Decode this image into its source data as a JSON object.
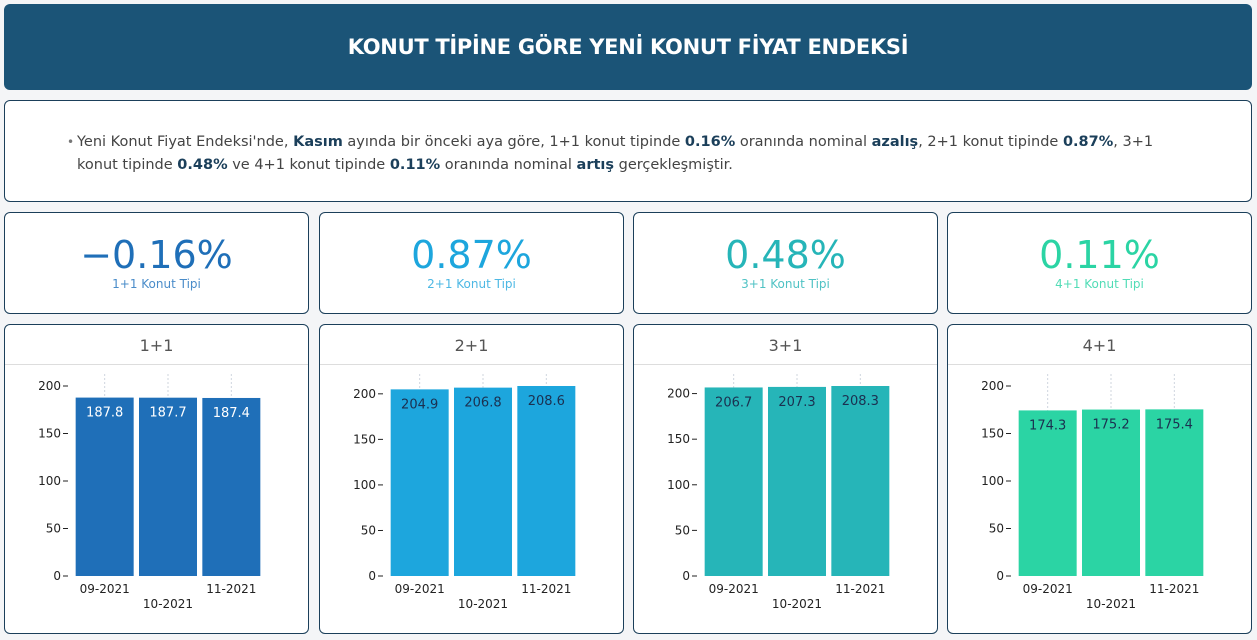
{
  "header": {
    "title": "KONUT TİPİNE GÖRE YENİ KONUT FİYAT ENDEKSİ"
  },
  "summary": {
    "bullet": "•",
    "parts": [
      {
        "text": "Yeni Konut Fiyat Endeksi'nde, ",
        "bold": false
      },
      {
        "text": "Kasım",
        "bold": true
      },
      {
        "text": " ayında bir önceki aya göre, 1+1 konut tipinde ",
        "bold": false
      },
      {
        "text": "0.16%",
        "bold": true
      },
      {
        "text": " oranında nominal ",
        "bold": false
      },
      {
        "text": "azalış",
        "bold": true
      },
      {
        "text": ", 2+1 konut tipinde ",
        "bold": false
      },
      {
        "text": "0.87%",
        "bold": true
      },
      {
        "text": ", 3+1 konut tipinde ",
        "bold": false
      },
      {
        "text": "0.48%",
        "bold": true
      },
      {
        "text": " ve 4+1 konut tipinde ",
        "bold": false
      },
      {
        "text": "0.11%",
        "bold": true
      },
      {
        "text": " oranında nominal ",
        "bold": false
      },
      {
        "text": "artış",
        "bold": true
      },
      {
        "text": " gerçekleşmiştir.",
        "bold": false
      }
    ]
  },
  "kpis": [
    {
      "value": "−0.16%",
      "label": "1+1 Konut Tipi",
      "color": "#1f6fb8",
      "label_color": "#4a8cc9"
    },
    {
      "value": "0.87%",
      "label": "2+1 Konut Tipi",
      "color": "#1da6dd",
      "label_color": "#4db8e4"
    },
    {
      "value": "0.48%",
      "label": "3+1 Konut Tipi",
      "color": "#26b5b8",
      "label_color": "#4fc2c4"
    },
    {
      "value": "0.11%",
      "label": "4+1 Konut Tipi",
      "color": "#2bd4a4",
      "label_color": "#52dcb6"
    }
  ],
  "chart_data": [
    {
      "type": "bar",
      "title": "1+1",
      "categories": [
        "09-2021",
        "10-2021",
        "11-2021"
      ],
      "values": [
        187.8,
        187.7,
        187.4
      ],
      "yticks": [
        0,
        50,
        100,
        150,
        200
      ],
      "ylim": [
        0,
        200
      ],
      "color": "#1f6fb8",
      "label_color": "#ffffff",
      "grid": "vertical-dotted"
    },
    {
      "type": "bar",
      "title": "2+1",
      "categories": [
        "09-2021",
        "10-2021",
        "11-2021"
      ],
      "values": [
        204.9,
        206.8,
        208.6
      ],
      "yticks": [
        0,
        50,
        100,
        150,
        200
      ],
      "ylim": [
        0,
        208.6
      ],
      "color": "#1da6dd",
      "label_color": "#1b3050",
      "grid": "vertical-dotted"
    },
    {
      "type": "bar",
      "title": "3+1",
      "categories": [
        "09-2021",
        "10-2021",
        "11-2021"
      ],
      "values": [
        206.7,
        207.3,
        208.3
      ],
      "yticks": [
        0,
        50,
        100,
        150,
        200
      ],
      "ylim": [
        0,
        208.3
      ],
      "color": "#26b5b8",
      "label_color": "#1b3050",
      "grid": "vertical-dotted"
    },
    {
      "type": "bar",
      "title": "4+1",
      "categories": [
        "09-2021",
        "10-2021",
        "11-2021"
      ],
      "values": [
        174.3,
        175.2,
        175.4
      ],
      "yticks": [
        0,
        50,
        100,
        150,
        200
      ],
      "ylim": [
        0,
        200
      ],
      "color": "#2bd4a4",
      "label_color": "#1b3050",
      "grid": "vertical-dotted"
    }
  ]
}
